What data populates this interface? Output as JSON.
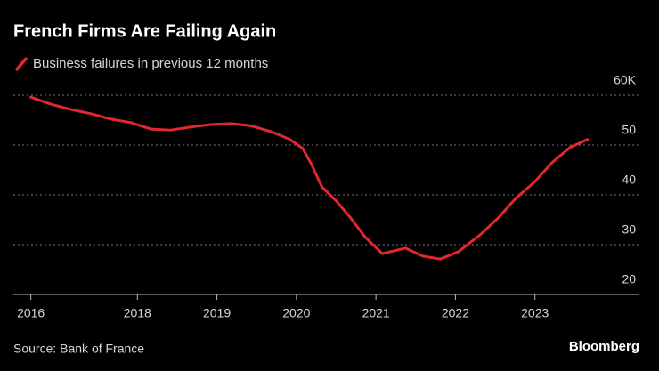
{
  "chart_data": {
    "type": "line",
    "title": "French Firms Are Failing Again",
    "x": [
      2016.66,
      2016.91,
      2017.17,
      2017.41,
      2017.67,
      2017.92,
      2018.17,
      2018.42,
      2018.67,
      2018.92,
      2019.17,
      2019.42,
      2019.68,
      2019.92,
      2020.08,
      2020.19,
      2020.32,
      2020.5,
      2020.68,
      2020.86,
      2021.08,
      2021.37,
      2021.59,
      2021.81,
      2022.04,
      2022.32,
      2022.54,
      2022.77,
      2022.99,
      2023.21,
      2023.44,
      2023.66
    ],
    "series": [
      {
        "name": "Business failures in previous 12 months",
        "color": "#e0282e",
        "values": [
          59.6,
          58.2,
          57.1,
          56.3,
          55.2,
          54.5,
          53.2,
          53.0,
          53.6,
          54.1,
          54.3,
          53.9,
          52.7,
          51.1,
          49.3,
          46.1,
          41.6,
          38.8,
          35.4,
          31.6,
          28.2,
          29.3,
          27.7,
          27.1,
          28.6,
          32.1,
          35.4,
          39.5,
          42.5,
          46.4,
          49.5,
          51.1
        ]
      }
    ],
    "xlim": [
      2016.44,
      2024.0
    ],
    "xticks": [
      {
        "value": 2016.66,
        "label": "2016"
      },
      2018,
      2019,
      2020,
      2021,
      2022,
      2023
    ],
    "ylim": [
      20,
      60
    ],
    "yticks": [
      20,
      30,
      40,
      50,
      {
        "value": 60,
        "label": "60K"
      }
    ],
    "grid": true,
    "source": "Source: Bank of France",
    "brand": "Bloomberg"
  }
}
